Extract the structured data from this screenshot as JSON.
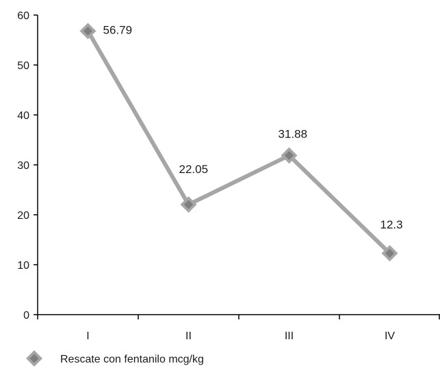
{
  "chart_data": {
    "type": "line",
    "categories": [
      "I",
      "II",
      "III",
      "IV"
    ],
    "series": [
      {
        "name": "Rescate con fentanilo mcg/kg",
        "values": [
          56.79,
          22.05,
          31.88,
          12.3
        ],
        "data_labels": [
          "56.79",
          "22.05",
          "31.88",
          "12.3"
        ],
        "color": "#a6a6a6",
        "marker_color": "#7f7f7f"
      }
    ],
    "ylim": [
      0,
      60
    ],
    "yticks": [
      0,
      10,
      20,
      30,
      40,
      50,
      60
    ],
    "ytick_labels": [
      "0",
      "10",
      "20",
      "30",
      "40",
      "50",
      "60"
    ],
    "grid": false,
    "legend": "bottom-left",
    "axis_color": "#000000"
  }
}
